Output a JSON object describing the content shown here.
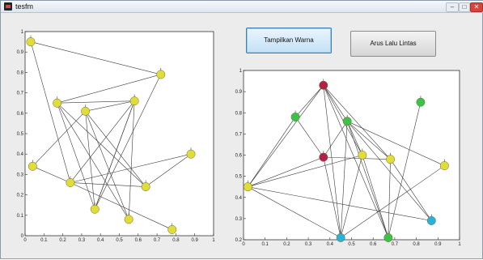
{
  "window": {
    "title": "tesfm",
    "controls": {
      "minimize": "–",
      "maximize": "□",
      "close": "✕"
    },
    "colors": {
      "close": "#d9443a",
      "titlebar": "#dfe6ee"
    }
  },
  "buttons": {
    "show_color": "Tampilkan Warna",
    "traffic_flow": "Arus Lalu Lintas"
  },
  "left_plot": {
    "xticks": [
      "0",
      "0.1",
      "0.2",
      "0.3",
      "0.4",
      "0.5",
      "0.6",
      "0.7",
      "0.8",
      "0.9",
      "1"
    ],
    "yticks": [
      "0",
      "0.1",
      "0.2",
      "0.3",
      "0.4",
      "0.5",
      "0.6",
      "0.7",
      "0.8",
      "0.9",
      "1"
    ],
    "xlim": [
      0,
      1
    ],
    "ylim": [
      0,
      1
    ],
    "node_color": "#e0dc3a",
    "nodes": [
      {
        "x": 0.03,
        "y": 0.95
      },
      {
        "x": 0.72,
        "y": 0.79
      },
      {
        "x": 0.17,
        "y": 0.65
      },
      {
        "x": 0.32,
        "y": 0.61
      },
      {
        "x": 0.58,
        "y": 0.66
      },
      {
        "x": 0.88,
        "y": 0.4
      },
      {
        "x": 0.04,
        "y": 0.34
      },
      {
        "x": 0.24,
        "y": 0.26
      },
      {
        "x": 0.64,
        "y": 0.24
      },
      {
        "x": 0.37,
        "y": 0.13
      },
      {
        "x": 0.55,
        "y": 0.08
      },
      {
        "x": 0.78,
        "y": 0.03
      }
    ],
    "edges": [
      [
        0,
        1
      ],
      [
        0,
        7
      ],
      [
        1,
        2
      ],
      [
        1,
        9
      ],
      [
        2,
        4
      ],
      [
        2,
        8
      ],
      [
        2,
        10
      ],
      [
        3,
        9
      ],
      [
        3,
        10
      ],
      [
        3,
        8
      ],
      [
        4,
        9
      ],
      [
        4,
        10
      ],
      [
        4,
        7
      ],
      [
        5,
        8
      ],
      [
        5,
        7
      ],
      [
        6,
        7
      ],
      [
        6,
        3
      ],
      [
        7,
        8
      ],
      [
        7,
        11
      ],
      [
        9,
        4
      ],
      [
        2,
        9
      ],
      [
        3,
        4
      ]
    ]
  },
  "right_plot": {
    "xticks": [
      "0",
      "0.1",
      "0.2",
      "0.3",
      "0.4",
      "0.5",
      "0.6",
      "0.7",
      "0.8",
      "0.9",
      "1"
    ],
    "yticks": [
      "0.2",
      "0.3",
      "0.4",
      "0.5",
      "0.6",
      "0.7",
      "0.8",
      "0.9",
      "1"
    ],
    "xlim": [
      0,
      1
    ],
    "ylim": [
      0.2,
      1
    ],
    "colors": {
      "yellow": "#e0dc3a",
      "green": "#3cc24a",
      "red": "#b3204a",
      "cyan": "#29b3dc"
    },
    "nodes": [
      {
        "x": 0.02,
        "y": 0.45,
        "c": "yellow"
      },
      {
        "x": 0.24,
        "y": 0.78,
        "c": "green"
      },
      {
        "x": 0.37,
        "y": 0.93,
        "c": "red"
      },
      {
        "x": 0.37,
        "y": 0.59,
        "c": "red"
      },
      {
        "x": 0.48,
        "y": 0.76,
        "c": "green"
      },
      {
        "x": 0.55,
        "y": 0.6,
        "c": "yellow"
      },
      {
        "x": 0.68,
        "y": 0.58,
        "c": "yellow"
      },
      {
        "x": 0.82,
        "y": 0.85,
        "c": "green"
      },
      {
        "x": 0.93,
        "y": 0.55,
        "c": "yellow"
      },
      {
        "x": 0.45,
        "y": 0.21,
        "c": "cyan"
      },
      {
        "x": 0.67,
        "y": 0.21,
        "c": "green"
      },
      {
        "x": 0.87,
        "y": 0.29,
        "c": "cyan"
      }
    ],
    "edges": [
      [
        0,
        1
      ],
      [
        0,
        2
      ],
      [
        0,
        3
      ],
      [
        0,
        9
      ],
      [
        0,
        11
      ],
      [
        0,
        5
      ],
      [
        1,
        2
      ],
      [
        2,
        4
      ],
      [
        2,
        9
      ],
      [
        2,
        10
      ],
      [
        2,
        6
      ],
      [
        3,
        4
      ],
      [
        3,
        6
      ],
      [
        3,
        9
      ],
      [
        4,
        5
      ],
      [
        4,
        9
      ],
      [
        4,
        10
      ],
      [
        4,
        11
      ],
      [
        5,
        9
      ],
      [
        5,
        10
      ],
      [
        6,
        10
      ],
      [
        6,
        11
      ],
      [
        7,
        10
      ],
      [
        8,
        9
      ],
      [
        8,
        4
      ],
      [
        1,
        3
      ],
      [
        4,
        6
      ],
      [
        2,
        5
      ]
    ]
  }
}
